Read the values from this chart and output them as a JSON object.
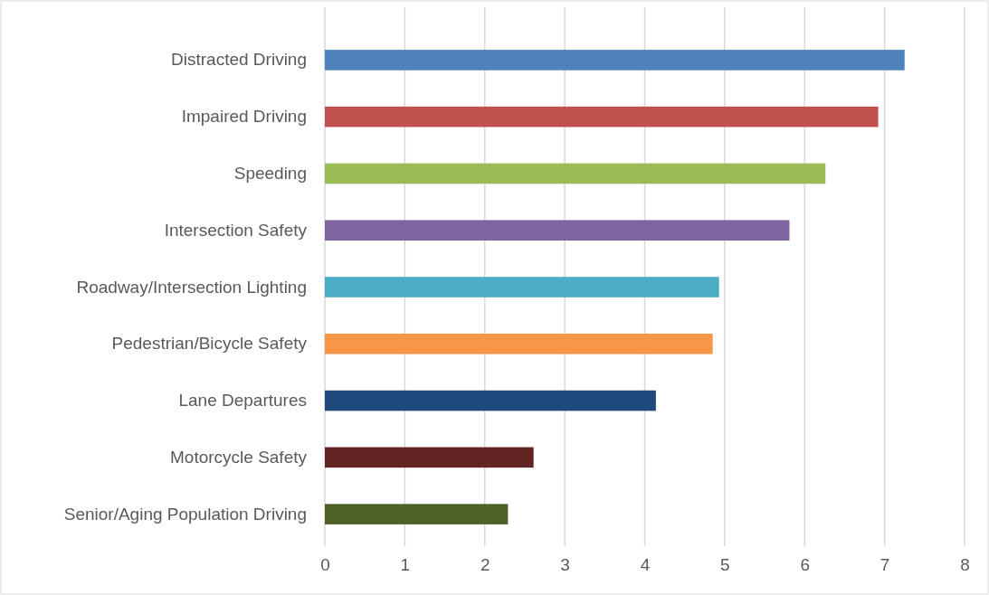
{
  "chart_data": {
    "type": "bar",
    "orientation": "horizontal",
    "categories": [
      "Distracted Driving",
      "Impaired Driving",
      "Speeding",
      "Intersection Safety",
      "Roadway/Intersection Lighting",
      "Pedestrian/Bicycle Safety",
      "Lane Departures",
      "Motorcycle Safety",
      "Senior/Aging Population Driving"
    ],
    "values": [
      7.25,
      6.92,
      6.26,
      5.81,
      4.93,
      4.85,
      4.14,
      2.61,
      2.29
    ],
    "colors": [
      "#4f81bd",
      "#c0504d",
      "#9bbb59",
      "#8064a2",
      "#4bacc6",
      "#f79646",
      "#1f497d",
      "#632523",
      "#4f6228"
    ],
    "xlim": [
      0,
      8
    ],
    "xticks": [
      0,
      1,
      2,
      3,
      4,
      5,
      6,
      7,
      8
    ],
    "grid": "x"
  }
}
